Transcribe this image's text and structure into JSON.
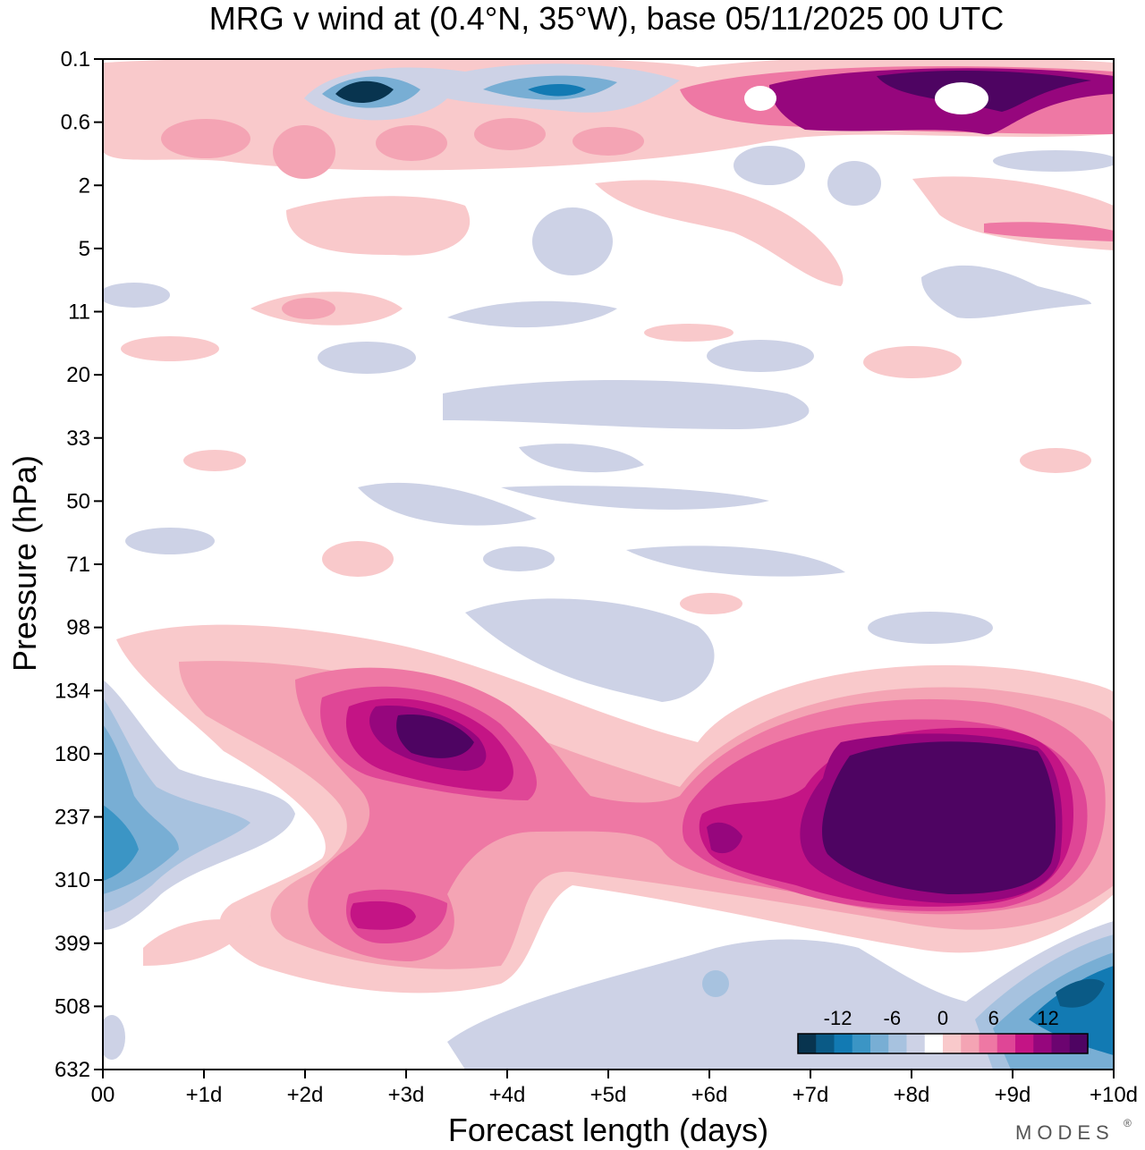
{
  "chart_data": {
    "type": "contour",
    "title": "MRG v wind at (0.4°N, 35°W),  base 05/11/2025  00 UTC",
    "xlabel": "Forecast length (days)",
    "ylabel": "Pressure (hPa)",
    "x_ticks": [
      "00",
      "+1d",
      "+2d",
      "+3d",
      "+4d",
      "+5d",
      "+6d",
      "+7d",
      "+8d",
      "+9d",
      "+10d"
    ],
    "xlim": [
      0,
      10
    ],
    "y_ticks": [
      "0.1",
      "0.6",
      "2",
      "5",
      "11",
      "20",
      "33",
      "50",
      "71",
      "98",
      "134",
      "180",
      "237",
      "310",
      "399",
      "508",
      "632"
    ],
    "ylim_hPa": [
      0.1,
      632
    ],
    "colorbar": {
      "tick_labels": [
        "-12",
        "-6",
        "0",
        "6",
        "12"
      ],
      "levels": [
        -16,
        -14,
        -12,
        -10,
        -8,
        -6,
        -4,
        -2,
        2,
        4,
        6,
        8,
        10,
        12,
        14,
        16
      ],
      "colors": [
        "#08344f",
        "#0a5a86",
        "#127ab3",
        "#3b95c5",
        "#78aed4",
        "#a7c2df",
        "#cdd2e6",
        "#ffffff",
        "#f9c9cb",
        "#f4a4b4",
        "#ee78a4",
        "#df4696",
        "#c41485",
        "#96067d",
        "#6c0470",
        "#4e0462"
      ]
    },
    "features": [
      {
        "name": "upper-troposphere-positive-max-day8",
        "value": 18,
        "x_days": 8.5,
        "level": 237
      },
      {
        "name": "upper-troposphere-positive-max-day3",
        "value": 14,
        "x_days": 3.4,
        "level": 180
      },
      {
        "name": "lower-positive-max-day3",
        "value": 10,
        "x_days": 3.1,
        "level": 360
      },
      {
        "name": "negative-min-day0",
        "value": -10,
        "x_days": 0.1,
        "level": 280
      },
      {
        "name": "negative-min-day9.5",
        "value": -12,
        "x_days": 9.6,
        "level": 480
      },
      {
        "name": "stratopause-negative-min-day2.5",
        "value": -16,
        "x_days": 2.5,
        "level": 0.3
      },
      {
        "name": "stratopause-positive-max-day8.5",
        "value": 16,
        "x_days": 8.5,
        "level": 0.25
      }
    ]
  },
  "branding": {
    "logo": "MODES",
    "mark": "®"
  }
}
